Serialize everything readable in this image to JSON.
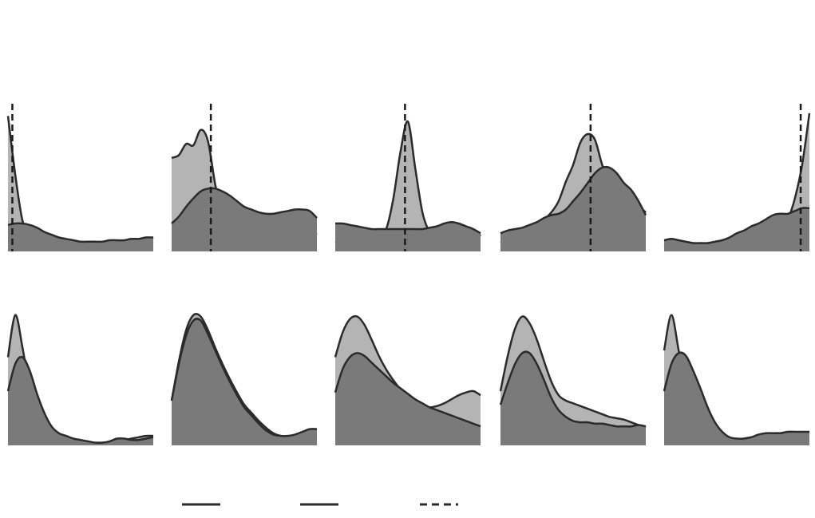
{
  "chart_data": {
    "type": "area",
    "title": "",
    "legend": {
      "placement": "bottom",
      "entries": [
        {
          "style": "solid",
          "label": ""
        },
        {
          "style": "solid",
          "label": ""
        },
        {
          "style": "dashed",
          "label": ""
        }
      ]
    },
    "colors": {
      "series_light": "#b4b4b4",
      "series_dark": "#7a7a7a",
      "stroke": "#2b2b2b",
      "reference": "#1a1a1a"
    },
    "x": [
      0,
      0.05,
      0.1,
      0.15,
      0.2,
      0.25,
      0.3,
      0.35,
      0.4,
      0.45,
      0.5,
      0.55,
      0.6,
      0.65,
      0.7,
      0.75,
      0.8,
      0.85,
      0.9,
      0.95,
      1.0
    ],
    "xlim": [
      0,
      1
    ],
    "ylim": [
      0,
      1
    ],
    "grid": false,
    "panels": [
      {
        "row": 0,
        "col": 0,
        "title": "",
        "ref_x": 0.03,
        "series": [
          {
            "values": [
              0.97,
              0.55,
              0.22,
              0.12,
              0.08,
              0.06,
              0.04,
              0.03,
              0.02,
              0.02,
              0.02,
              0.01,
              0.02,
              0.02,
              0.02,
              0.03,
              0.04,
              0.05,
              0.06,
              0.08,
              0.1
            ]
          },
          {
            "values": [
              0.19,
              0.2,
              0.2,
              0.19,
              0.17,
              0.14,
              0.12,
              0.1,
              0.09,
              0.08,
              0.07,
              0.07,
              0.07,
              0.07,
              0.08,
              0.08,
              0.08,
              0.09,
              0.09,
              0.1,
              0.1
            ]
          }
        ]
      },
      {
        "row": 0,
        "col": 1,
        "title": "",
        "ref_x": 0.27,
        "series": [
          {
            "values": [
              0.67,
              0.69,
              0.77,
              0.76,
              0.87,
              0.79,
              0.48,
              0.25,
              0.12,
              0.08,
              0.06,
              0.05,
              0.05,
              0.05,
              0.05,
              0.05,
              0.06,
              0.06,
              0.07,
              0.1,
              0.13
            ]
          },
          {
            "values": [
              0.2,
              0.25,
              0.32,
              0.38,
              0.43,
              0.45,
              0.45,
              0.43,
              0.4,
              0.36,
              0.32,
              0.3,
              0.28,
              0.27,
              0.27,
              0.28,
              0.29,
              0.3,
              0.3,
              0.29,
              0.24
            ]
          }
        ]
      },
      {
        "row": 0,
        "col": 2,
        "title": "",
        "ref_x": 0.48,
        "series": [
          {
            "values": [
              0.07,
              0.05,
              0.07,
              0.06,
              0.12,
              0.15,
              0.14,
              0.16,
              0.38,
              0.72,
              0.93,
              0.6,
              0.28,
              0.14,
              0.12,
              0.1,
              0.11,
              0.12,
              0.07,
              0.04,
              0.12
            ]
          },
          {
            "values": [
              0.2,
              0.2,
              0.19,
              0.18,
              0.17,
              0.16,
              0.16,
              0.16,
              0.16,
              0.16,
              0.16,
              0.16,
              0.16,
              0.17,
              0.18,
              0.2,
              0.21,
              0.2,
              0.18,
              0.16,
              0.13
            ]
          }
        ]
      },
      {
        "row": 0,
        "col": 3,
        "title": "",
        "ref_x": 0.62,
        "series": [
          {
            "values": [
              0.06,
              0.08,
              0.1,
              0.13,
              0.16,
              0.2,
              0.23,
              0.28,
              0.36,
              0.5,
              0.62,
              0.78,
              0.84,
              0.8,
              0.62,
              0.5,
              0.46,
              0.45,
              0.43,
              0.33,
              0.28
            ]
          },
          {
            "values": [
              0.13,
              0.15,
              0.16,
              0.17,
              0.19,
              0.21,
              0.24,
              0.26,
              0.27,
              0.3,
              0.36,
              0.42,
              0.49,
              0.56,
              0.6,
              0.6,
              0.56,
              0.49,
              0.44,
              0.36,
              0.26
            ]
          }
        ]
      },
      {
        "row": 0,
        "col": 4,
        "title": "",
        "ref_x": 0.94,
        "series": [
          {
            "values": [
              0.04,
              0.03,
              0.02,
              0.02,
              0.02,
              0.02,
              0.03,
              0.03,
              0.02,
              0.02,
              0.02,
              0.02,
              0.03,
              0.04,
              0.05,
              0.07,
              0.12,
              0.22,
              0.38,
              0.62,
              0.99
            ]
          },
          {
            "values": [
              0.08,
              0.09,
              0.08,
              0.07,
              0.06,
              0.06,
              0.06,
              0.07,
              0.08,
              0.1,
              0.13,
              0.15,
              0.18,
              0.2,
              0.23,
              0.26,
              0.27,
              0.27,
              0.29,
              0.31,
              0.31
            ]
          }
        ]
      },
      {
        "row": 1,
        "col": 0,
        "title": "",
        "ref_x": null,
        "series": [
          {
            "values": [
              0.65,
              0.96,
              0.72,
              0.42,
              0.24,
              0.14,
              0.09,
              0.07,
              0.05,
              0.04,
              0.03,
              0.02,
              0.02,
              0.02,
              0.02,
              0.03,
              0.04,
              0.05,
              0.06,
              0.07,
              0.07
            ]
          },
          {
            "values": [
              0.4,
              0.6,
              0.65,
              0.55,
              0.38,
              0.24,
              0.14,
              0.09,
              0.07,
              0.05,
              0.04,
              0.03,
              0.02,
              0.02,
              0.03,
              0.05,
              0.05,
              0.04,
              0.04,
              0.05,
              0.06
            ]
          }
        ]
      },
      {
        "row": 1,
        "col": 1,
        "title": "",
        "ref_x": null,
        "series": [
          {
            "values": [
              0.33,
              0.62,
              0.85,
              0.96,
              0.95,
              0.85,
              0.72,
              0.6,
              0.49,
              0.39,
              0.3,
              0.24,
              0.18,
              0.13,
              0.09,
              0.07,
              0.06,
              0.06,
              0.08,
              0.1,
              0.1
            ]
          },
          {
            "values": [
              0.33,
              0.6,
              0.81,
              0.92,
              0.92,
              0.82,
              0.7,
              0.58,
              0.47,
              0.37,
              0.28,
              0.22,
              0.16,
              0.11,
              0.08,
              0.07,
              0.07,
              0.08,
              0.1,
              0.12,
              0.12
            ]
          }
        ]
      },
      {
        "row": 1,
        "col": 2,
        "title": "",
        "ref_x": null,
        "series": [
          {
            "values": [
              0.65,
              0.83,
              0.93,
              0.95,
              0.89,
              0.78,
              0.66,
              0.56,
              0.48,
              0.41,
              0.35,
              0.31,
              0.29,
              0.28,
              0.29,
              0.31,
              0.34,
              0.37,
              0.39,
              0.4,
              0.37
            ]
          },
          {
            "values": [
              0.39,
              0.56,
              0.65,
              0.68,
              0.66,
              0.61,
              0.56,
              0.51,
              0.46,
              0.42,
              0.38,
              0.34,
              0.31,
              0.28,
              0.26,
              0.24,
              0.22,
              0.2,
              0.18,
              0.16,
              0.14
            ]
          }
        ]
      },
      {
        "row": 1,
        "col": 3,
        "title": "",
        "ref_x": null,
        "series": [
          {
            "values": [
              0.4,
              0.66,
              0.86,
              0.95,
              0.9,
              0.78,
              0.62,
              0.47,
              0.37,
              0.33,
              0.31,
              0.29,
              0.27,
              0.25,
              0.23,
              0.21,
              0.2,
              0.19,
              0.17,
              0.15,
              0.13
            ]
          },
          {
            "values": [
              0.3,
              0.46,
              0.6,
              0.68,
              0.68,
              0.6,
              0.48,
              0.35,
              0.26,
              0.21,
              0.18,
              0.17,
              0.17,
              0.16,
              0.16,
              0.15,
              0.14,
              0.14,
              0.14,
              0.15,
              0.14
            ]
          }
        ]
      },
      {
        "row": 1,
        "col": 4,
        "title": "",
        "ref_x": null,
        "series": [
          {
            "values": [
              0.7,
              0.96,
              0.7,
              0.42,
              0.24,
              0.13,
              0.07,
              0.05,
              0.04,
              0.04,
              0.04,
              0.05,
              0.06,
              0.07,
              0.08,
              0.09,
              0.09,
              0.09,
              0.08,
              0.09,
              0.1
            ]
          },
          {
            "values": [
              0.4,
              0.6,
              0.68,
              0.66,
              0.55,
              0.42,
              0.28,
              0.17,
              0.1,
              0.06,
              0.05,
              0.05,
              0.06,
              0.08,
              0.09,
              0.09,
              0.09,
              0.1,
              0.1,
              0.1,
              0.1
            ]
          }
        ]
      }
    ]
  }
}
